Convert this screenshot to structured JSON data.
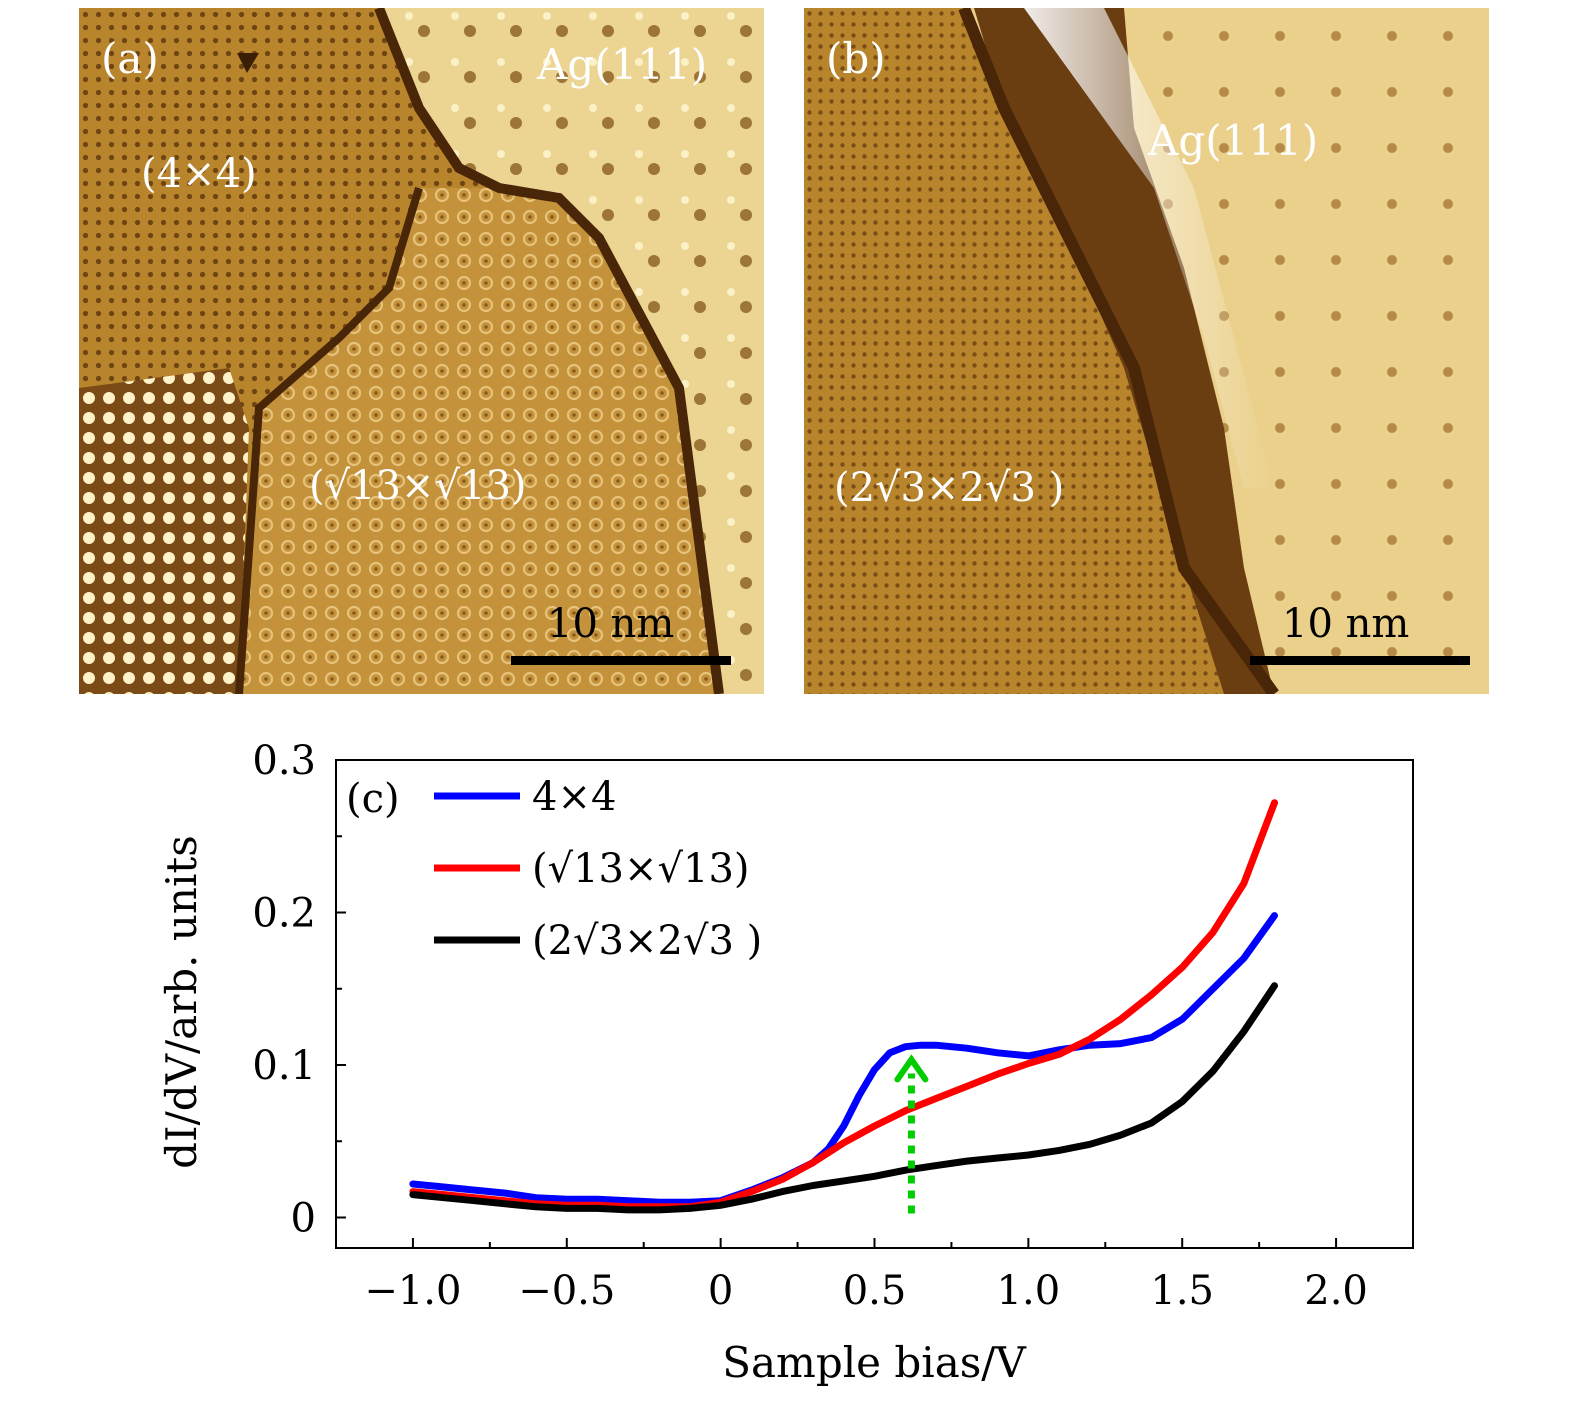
{
  "panel_a": {
    "label": "(a)",
    "regions": [
      "Ag(111)",
      "(4×4)",
      "(√13×√13)"
    ],
    "scale_bar": "10 nm"
  },
  "panel_b": {
    "label": "(b)",
    "regions": [
      "Ag(111)",
      "(2√3×2√3 )"
    ],
    "scale_bar": "10 nm"
  },
  "chart_data": {
    "type": "line",
    "panel_label": "(c)",
    "title": "",
    "xlabel": "Sample bias/V",
    "ylabel": "dI/dV/arb. units",
    "xlim": [
      -1.25,
      2.25
    ],
    "ylim": [
      -0.02,
      0.3
    ],
    "xticks": [
      -1.0,
      -0.5,
      0,
      0.5,
      1.0,
      1.5,
      2.0
    ],
    "xtick_labels": [
      "−1.0",
      "−0.5",
      "0",
      "0.5",
      "1.0",
      "1.5",
      "2.0"
    ],
    "yticks": [
      0,
      0.1,
      0.2,
      0.3
    ],
    "ytick_labels": [
      "0",
      "0.1",
      "0.2",
      "0.3"
    ],
    "legend_position": "top-left",
    "series": [
      {
        "name": "4×4",
        "color": "#0000ff",
        "x": [
          -1.0,
          -0.9,
          -0.8,
          -0.7,
          -0.6,
          -0.5,
          -0.4,
          -0.3,
          -0.2,
          -0.1,
          0.0,
          0.1,
          0.2,
          0.3,
          0.35,
          0.4,
          0.45,
          0.5,
          0.55,
          0.6,
          0.65,
          0.7,
          0.75,
          0.8,
          0.9,
          1.0,
          1.1,
          1.2,
          1.3,
          1.4,
          1.5,
          1.6,
          1.7,
          1.8
        ],
        "values": [
          0.022,
          0.02,
          0.018,
          0.016,
          0.013,
          0.012,
          0.012,
          0.011,
          0.01,
          0.01,
          0.011,
          0.018,
          0.026,
          0.036,
          0.045,
          0.06,
          0.08,
          0.097,
          0.108,
          0.112,
          0.113,
          0.113,
          0.112,
          0.111,
          0.108,
          0.106,
          0.11,
          0.113,
          0.114,
          0.118,
          0.13,
          0.15,
          0.17,
          0.198
        ]
      },
      {
        "name": "(√13×√13)",
        "color": "#ff0000",
        "x": [
          -1.0,
          -0.9,
          -0.8,
          -0.7,
          -0.6,
          -0.5,
          -0.4,
          -0.3,
          -0.2,
          -0.1,
          0.0,
          0.1,
          0.2,
          0.3,
          0.4,
          0.5,
          0.6,
          0.7,
          0.8,
          0.9,
          1.0,
          1.1,
          1.2,
          1.3,
          1.4,
          1.5,
          1.6,
          1.7,
          1.8
        ],
        "values": [
          0.017,
          0.015,
          0.013,
          0.011,
          0.009,
          0.008,
          0.008,
          0.007,
          0.007,
          0.007,
          0.01,
          0.017,
          0.025,
          0.036,
          0.049,
          0.06,
          0.07,
          0.078,
          0.086,
          0.094,
          0.101,
          0.107,
          0.117,
          0.13,
          0.146,
          0.164,
          0.187,
          0.219,
          0.272
        ]
      },
      {
        "name": "(2√3×2√3 )",
        "color": "#000000",
        "x": [
          -1.0,
          -0.9,
          -0.8,
          -0.7,
          -0.6,
          -0.5,
          -0.4,
          -0.3,
          -0.2,
          -0.1,
          0.0,
          0.1,
          0.2,
          0.3,
          0.4,
          0.5,
          0.6,
          0.7,
          0.8,
          0.9,
          1.0,
          1.1,
          1.2,
          1.3,
          1.4,
          1.5,
          1.6,
          1.7,
          1.8
        ],
        "values": [
          0.015,
          0.013,
          0.011,
          0.009,
          0.007,
          0.006,
          0.006,
          0.005,
          0.005,
          0.006,
          0.008,
          0.012,
          0.017,
          0.021,
          0.024,
          0.027,
          0.031,
          0.034,
          0.037,
          0.039,
          0.041,
          0.044,
          0.048,
          0.054,
          0.062,
          0.076,
          0.096,
          0.122,
          0.152
        ]
      }
    ],
    "annotations": [
      {
        "type": "dotted-arrow",
        "color": "#00cc00",
        "x": 0.62,
        "from_y": 0.0,
        "to_y": 0.101
      }
    ]
  }
}
